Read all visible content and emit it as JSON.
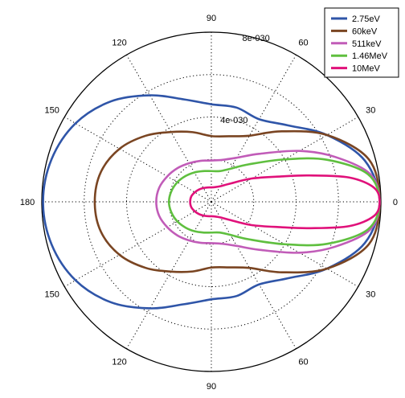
{
  "chart_data": {
    "type": "line",
    "subtype": "polar",
    "theta_unit": "degrees",
    "theta_range": [
      0,
      180
    ],
    "mirrored_about_horizontal_axis": true,
    "r_range": [
      0,
      8e-30
    ],
    "radial_tick_labels": [
      "4e-030",
      "8e-030"
    ],
    "angle_tick_labels": {
      "0": "0",
      "30": "30",
      "60": "60",
      "90": "90",
      "120": "120",
      "150": "150",
      "180": "180",
      "210": "150",
      "240": "120",
      "270": "90",
      "300": "60",
      "330": "30"
    },
    "grid": true,
    "legend_position": "top-right",
    "series": [
      {
        "name": "2.75eV",
        "color": "#2f55a8",
        "theta": [
          0,
          15,
          30,
          45,
          60,
          75,
          90,
          105,
          120,
          135,
          150,
          165,
          180
        ],
        "r": [
          7.94e-30,
          7.5e-30,
          6.3e-30,
          5.1e-30,
          4.5e-30,
          4.6e-30,
          4.6e-30,
          5e-30,
          5.8e-30,
          6.7e-30,
          7.4e-30,
          7.8e-30,
          7.94e-30
        ]
      },
      {
        "name": "60keV",
        "color": "#7a4522",
        "theta": [
          0,
          15,
          30,
          45,
          60,
          75,
          90,
          105,
          120,
          135,
          150,
          165,
          180
        ],
        "r": [
          7.94e-30,
          7.7e-30,
          6.3e-30,
          4.7e-30,
          3.6e-30,
          3.2e-30,
          3.1e-30,
          3.4e-30,
          3.8e-30,
          4.4e-30,
          5e-30,
          5.4e-30,
          5.5e-30
        ]
      },
      {
        "name": "511keV",
        "color": "#c15cb8",
        "theta": [
          0,
          10,
          20,
          30,
          45,
          60,
          75,
          90,
          105,
          120,
          135,
          150,
          165,
          180
        ],
        "r": [
          7.94e-30,
          7.6e-30,
          6.2e-30,
          4.8e-30,
          3.2e-30,
          2.4e-30,
          2.05e-30,
          1.95e-30,
          2e-30,
          2.1e-30,
          2.25e-30,
          2.4e-30,
          2.55e-30,
          2.6e-30
        ]
      },
      {
        "name": "1.46MeV",
        "color": "#5fbf3f",
        "theta": [
          0,
          10,
          20,
          30,
          45,
          60,
          75,
          90,
          105,
          120,
          135,
          150,
          165,
          180
        ],
        "r": [
          7.94e-30,
          7.5e-30,
          5.8e-30,
          4e-30,
          2.5e-30,
          1.8e-30,
          1.5e-30,
          1.45e-30,
          1.5e-30,
          1.6e-30,
          1.72e-30,
          1.85e-30,
          1.95e-30,
          2e-30
        ]
      },
      {
        "name": "10MeV",
        "color": "#e0117a",
        "theta": [
          0,
          5,
          10,
          15,
          20,
          30,
          45,
          60,
          75,
          90,
          105,
          120,
          135,
          150,
          165,
          180
        ],
        "r": [
          7.94e-30,
          7.7e-30,
          6.6e-30,
          4.8e-30,
          3.5e-30,
          2.2e-30,
          1.2e-30,
          8.5e-31,
          7.2e-31,
          6.8e-31,
          7e-31,
          7.5e-31,
          8.2e-31,
          9e-31,
          9.8e-31,
          1e-30
        ]
      }
    ]
  }
}
